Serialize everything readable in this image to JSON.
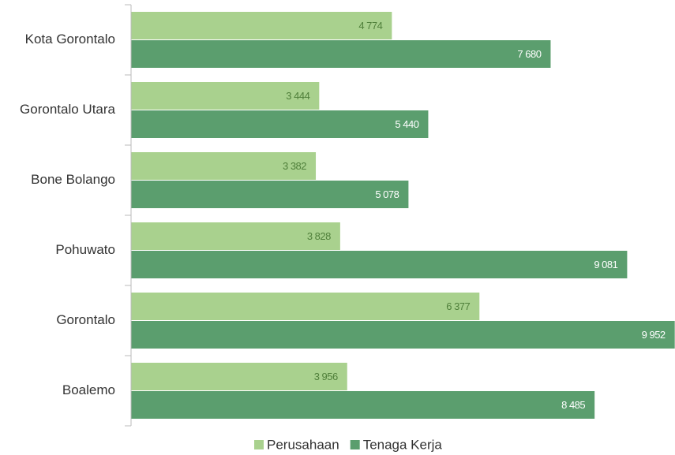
{
  "chart_data": {
    "type": "bar",
    "orientation": "horizontal",
    "categories": [
      "Kota Gorontalo",
      "Gorontalo Utara",
      "Bone Bolango",
      "Pohuwato",
      "Gorontalo",
      "Boalemo"
    ],
    "series": [
      {
        "name": "Perusahaan",
        "color": "#a9d18e",
        "values": [
          4774,
          3444,
          3382,
          3828,
          6377,
          3956
        ],
        "value_labels": [
          "4 774",
          "3 444",
          "3 382",
          "3 828",
          "6 377",
          "3 956"
        ]
      },
      {
        "name": "Tenaga Kerja",
        "color": "#5b9e6e",
        "values": [
          7680,
          5440,
          5078,
          9081,
          9952,
          8485
        ],
        "value_labels": [
          "7 680",
          "5 440",
          "5 078",
          "9 081",
          "9 952",
          "8 485"
        ]
      }
    ],
    "xlim": [
      0,
      10000
    ],
    "legend": "bottom"
  }
}
